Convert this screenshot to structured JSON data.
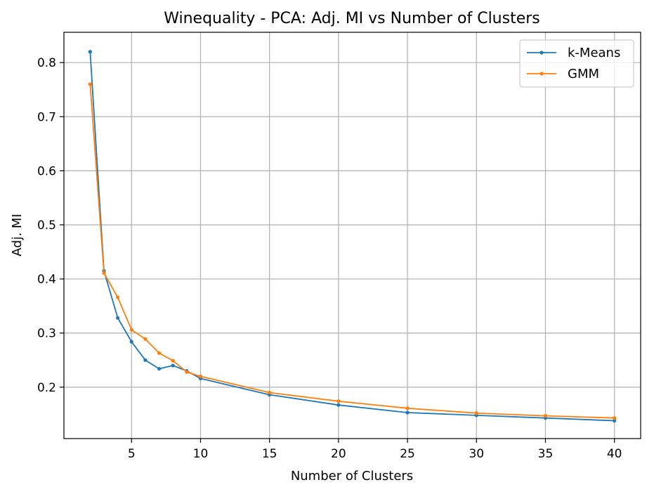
{
  "chart_data": {
    "type": "line",
    "title": "Winequality - PCA: Adj. MI vs Number of Clusters",
    "xlabel": "Number of Clusters",
    "ylabel": "Adj. MI",
    "xlim": [
      0.1,
      41.9
    ],
    "ylim": [
      0.105,
      0.856
    ],
    "xticks": [
      5,
      10,
      15,
      20,
      25,
      30,
      35,
      40
    ],
    "yticks": [
      0.2,
      0.3,
      0.4,
      0.5,
      0.6,
      0.7,
      0.8
    ],
    "grid": true,
    "legend_position": "top-right",
    "x": [
      2,
      3,
      4,
      5,
      6,
      7,
      8,
      9,
      10,
      15,
      20,
      25,
      30,
      35,
      40
    ],
    "series": [
      {
        "name": "k-Means",
        "color": "#1f77b4",
        "values": [
          0.82,
          0.415,
          0.328,
          0.284,
          0.25,
          0.234,
          0.24,
          0.23,
          0.216,
          0.186,
          0.167,
          0.153,
          0.148,
          0.143,
          0.138
        ]
      },
      {
        "name": "GMM",
        "color": "#ff7f0e",
        "values": [
          0.76,
          0.411,
          0.366,
          0.306,
          0.289,
          0.263,
          0.249,
          0.228,
          0.22,
          0.19,
          0.174,
          0.161,
          0.152,
          0.147,
          0.143
        ]
      }
    ]
  }
}
